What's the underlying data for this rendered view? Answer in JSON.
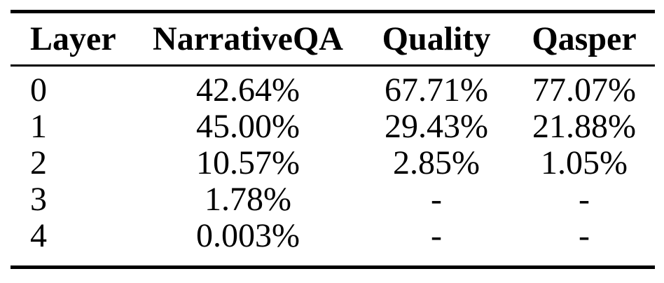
{
  "table": {
    "headers": [
      "Layer",
      "NarrativeQA",
      "Quality",
      "Qasper"
    ],
    "rows": [
      [
        "0",
        "42.64%",
        "67.71%",
        "77.07%"
      ],
      [
        "1",
        "45.00%",
        "29.43%",
        "21.88%"
      ],
      [
        "2",
        "10.57%",
        "2.85%",
        "1.05%"
      ],
      [
        "3",
        "1.78%",
        "-",
        "-"
      ],
      [
        "4",
        "0.003%",
        "-",
        "-"
      ]
    ],
    "colors": {
      "text": "#000000",
      "background": "#ffffff",
      "rule": "#000000"
    }
  }
}
